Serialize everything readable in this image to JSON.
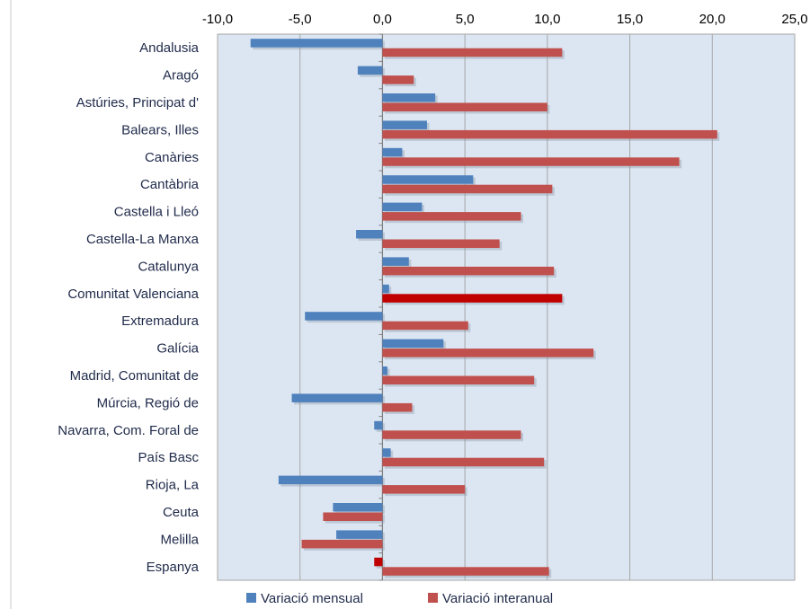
{
  "chart_data": {
    "type": "bar",
    "orientation": "horizontal",
    "categories": [
      "Andalusia",
      "Aragó",
      "Astúries, Principat d'",
      "Balears, Illes",
      "Canàries",
      "Cantàbria",
      "Castella  i Lleó",
      "Castella-La Manxa",
      "Catalunya",
      "Comunitat Valenciana",
      "Extremadura",
      "Galícia",
      "Madrid, Comunitat de",
      "Múrcia, Regió de",
      "Navarra, Com. Foral de",
      "País Basc",
      "Rioja, La",
      "Ceuta",
      "Melilla",
      "Espanya"
    ],
    "series": [
      {
        "name": "Variació mensual",
        "color": "#4f81bd",
        "values": [
          -8.0,
          -1.5,
          3.2,
          2.7,
          1.2,
          5.5,
          2.4,
          -1.6,
          1.6,
          0.4,
          -4.7,
          3.7,
          0.3,
          -5.5,
          -0.5,
          0.5,
          -6.3,
          -3.0,
          -2.8,
          -0.5
        ],
        "highlight_color": "#c00000",
        "highlight_indices": [
          19
        ]
      },
      {
        "name": "Variació interanual",
        "color": "#c0504d",
        "values": [
          10.9,
          1.9,
          10.0,
          20.3,
          18.0,
          10.3,
          8.4,
          7.1,
          10.4,
          10.9,
          5.2,
          12.8,
          9.2,
          1.8,
          8.4,
          9.8,
          5.0,
          -3.6,
          -4.9,
          10.1
        ],
        "highlight_color": "#c00000",
        "highlight_indices": [
          9
        ]
      }
    ],
    "xlim": [
      -10,
      25
    ],
    "xticks": [
      "-10,0",
      "-5,0",
      "0,0",
      "5,0",
      "10,0",
      "15,0",
      "20,0",
      "25,0"
    ],
    "grid": true,
    "legend_position": "bottom",
    "plot_background": "#dce6f2"
  }
}
